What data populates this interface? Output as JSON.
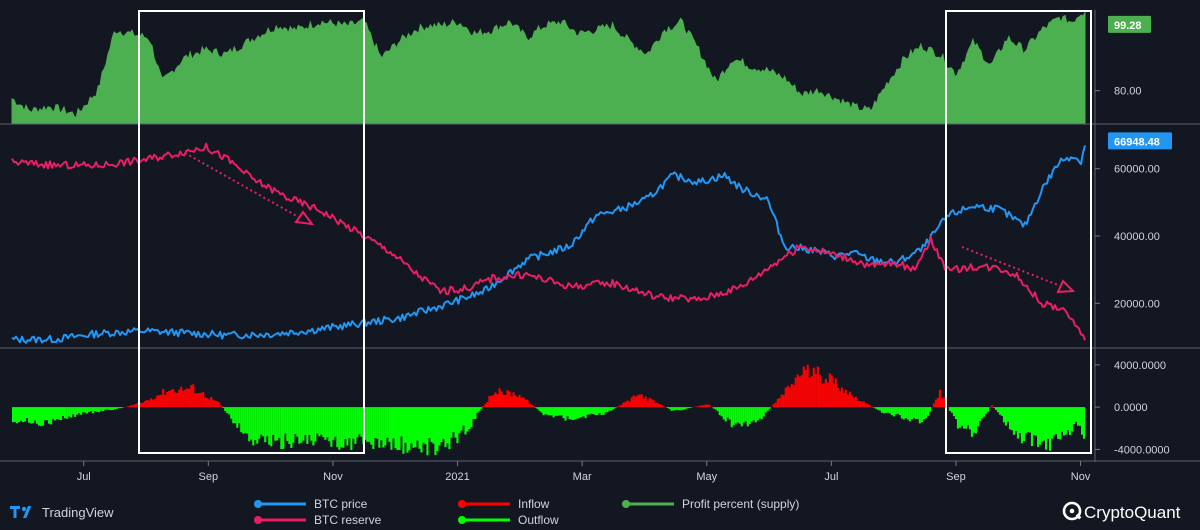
{
  "colors": {
    "background": "#131722",
    "profit": "#4caf50",
    "price": "#2196f3",
    "reserve": "#e91e63",
    "inflow": "#ff0000",
    "outflow": "#00ff00",
    "highlight_box": "#ffffff",
    "arrow": "#e91e63"
  },
  "branding": {
    "tradingview_label": "TradingView",
    "cryptoquant_label": "CryptoQuant"
  },
  "chart_data": [
    {
      "type": "area",
      "series": [
        {
          "name": "Profit percent (supply)",
          "t": [
            0.0,
            0.2,
            0.45,
            0.75,
            1.0,
            1.2,
            1.6,
            1.75,
            2.0,
            2.25,
            2.5,
            2.9,
            3.1,
            3.3,
            3.6,
            3.9,
            4.1,
            4.3,
            4.5,
            4.7,
            4.85,
            5.0,
            5.2,
            5.4,
            5.6,
            5.8,
            6.0,
            6.2,
            6.4,
            6.6,
            6.8,
            7.0,
            7.2,
            7.4,
            7.6,
            7.8,
            8.0,
            8.2,
            8.4,
            8.6,
            8.8,
            9.0,
            9.2,
            9.4,
            9.6,
            9.8,
            10.0,
            10.2,
            10.4,
            10.6,
            10.8,
            11.0,
            11.2,
            11.4,
            11.6,
            11.8,
            12.0,
            12.2,
            12.35,
            12.45,
            12.5
          ],
          "values": [
            78,
            75,
            76,
            74,
            80,
            95,
            93,
            82,
            88,
            90,
            89,
            94,
            96,
            95,
            97,
            96,
            97,
            88,
            92,
            95,
            96,
            96,
            97,
            94,
            95,
            97,
            93,
            96,
            97,
            94,
            95,
            96,
            92,
            89,
            95,
            97,
            90,
            82,
            88,
            86,
            85,
            83,
            79,
            80,
            78,
            76,
            75,
            82,
            88,
            91,
            89,
            84,
            92,
            86,
            93,
            90,
            95,
            98,
            97,
            99.28,
            99.28
          ]
        }
      ],
      "ylim": [
        72,
        100
      ],
      "y_ticks": [
        80
      ],
      "last_value_label": "99.28"
    },
    {
      "type": "line",
      "series": [
        {
          "name": "BTC price",
          "t": [
            0.0,
            0.5,
            1.0,
            1.5,
            2.0,
            2.5,
            3.0,
            3.5,
            4.0,
            4.5,
            5.0,
            5.5,
            6.0,
            6.5,
            6.8,
            7.1,
            7.4,
            7.7,
            8.0,
            8.3,
            8.5,
            8.8,
            9.0,
            9.3,
            9.6,
            9.8,
            10.0,
            10.3,
            10.6,
            10.9,
            11.0,
            11.2,
            11.5,
            11.8,
            12.0,
            12.2,
            12.35,
            12.45,
            12.5
          ],
          "values": [
            9200,
            9300,
            11000,
            11800,
            11200,
            10500,
            10800,
            12000,
            13800,
            15500,
            19200,
            23500,
            33000,
            37000,
            46000,
            48000,
            51000,
            58000,
            56000,
            58000,
            54000,
            51000,
            37000,
            36000,
            34000,
            35000,
            33000,
            32000,
            36000,
            46000,
            47000,
            49000,
            48000,
            43000,
            54000,
            62000,
            64000,
            62000,
            66948.48
          ]
        },
        {
          "name": "BTC reserve",
          "t": [
            0.0,
            0.5,
            1.0,
            1.5,
            2.0,
            2.25,
            2.5,
            2.8,
            3.2,
            3.6,
            4.0,
            4.4,
            4.7,
            5.0,
            5.3,
            5.6,
            6.0,
            6.5,
            7.0,
            7.5,
            8.0,
            8.5,
            9.0,
            9.2,
            9.5,
            9.8,
            10.0,
            10.3,
            10.5,
            10.7,
            10.9,
            11.2,
            11.5,
            11.7,
            11.85,
            12.0,
            12.2,
            12.4,
            12.5
          ],
          "values": [
            62000,
            61000,
            61000,
            62500,
            65000,
            66500,
            63000,
            57000,
            51500,
            47500,
            41500,
            35500,
            29000,
            23500,
            24500,
            27500,
            28500,
            25000,
            26000,
            22000,
            21000,
            25000,
            34000,
            37000,
            35000,
            33000,
            31000,
            32000,
            30000,
            39000,
            29500,
            31000,
            30500,
            28500,
            24000,
            20000,
            18500,
            14000,
            9000
          ]
        }
      ],
      "ylim": [
        7000,
        73000
      ],
      "y_ticks": [
        20000,
        40000,
        60000
      ],
      "y_tick_labels": [
        "20000.00",
        "40000.00",
        "60000.00"
      ],
      "last_value_label": "66948.48"
    },
    {
      "type": "bar",
      "series": [
        {
          "name": "Inflow / Outflow",
          "t": [
            0.0,
            0.4,
            0.8,
            1.2,
            1.5,
            1.8,
            2.1,
            2.4,
            2.6,
            2.8,
            3.1,
            3.4,
            3.8,
            4.2,
            4.6,
            5.0,
            5.3,
            5.6,
            5.9,
            6.2,
            6.5,
            6.9,
            7.3,
            7.7,
            8.1,
            8.4,
            8.7,
            9.0,
            9.2,
            9.5,
            9.8,
            10.1,
            10.4,
            10.6,
            10.8,
            11.0,
            11.2,
            11.4,
            11.7,
            12.0,
            12.2,
            12.4,
            12.5
          ],
          "values": [
            -1200,
            -1500,
            -600,
            -200,
            400,
            1600,
            1800,
            400,
            -1600,
            -3200,
            -3400,
            -3000,
            -3300,
            -3400,
            -3600,
            -3800,
            -2000,
            1500,
            1200,
            -800,
            -1100,
            -600,
            1200,
            -400,
            300,
            -1800,
            -1200,
            1500,
            3500,
            2800,
            1000,
            -400,
            -1000,
            -1600,
            1400,
            -1600,
            -2400,
            200,
            -2700,
            -3400,
            -3200,
            -1400,
            -2800
          ]
        }
      ],
      "ylim": [
        -5000,
        5500
      ],
      "y_ticks": [
        4000,
        0,
        -4000
      ],
      "y_tick_labels": [
        "4000.0000",
        "0.0000",
        "-4000.0000"
      ]
    }
  ],
  "x_axis": {
    "labels": [
      "Jul",
      "Sep",
      "Nov",
      "2021",
      "Mar",
      "May",
      "Jul",
      "Sep",
      "Nov"
    ],
    "positions": [
      0.75,
      2.75,
      4.75,
      6.75,
      8.75,
      10.75,
      12.75,
      14.75,
      16.75
    ]
  },
  "legend": [
    {
      "label": "BTC price",
      "color": "#2196f3"
    },
    {
      "label": "BTC reserve",
      "color": "#e91e63"
    },
    {
      "label": "Inflow",
      "color": "#ff0000"
    },
    {
      "label": "Outflow",
      "color": "#00ff00"
    },
    {
      "label": "Profit percent (supply)",
      "color": "#4caf50"
    }
  ]
}
